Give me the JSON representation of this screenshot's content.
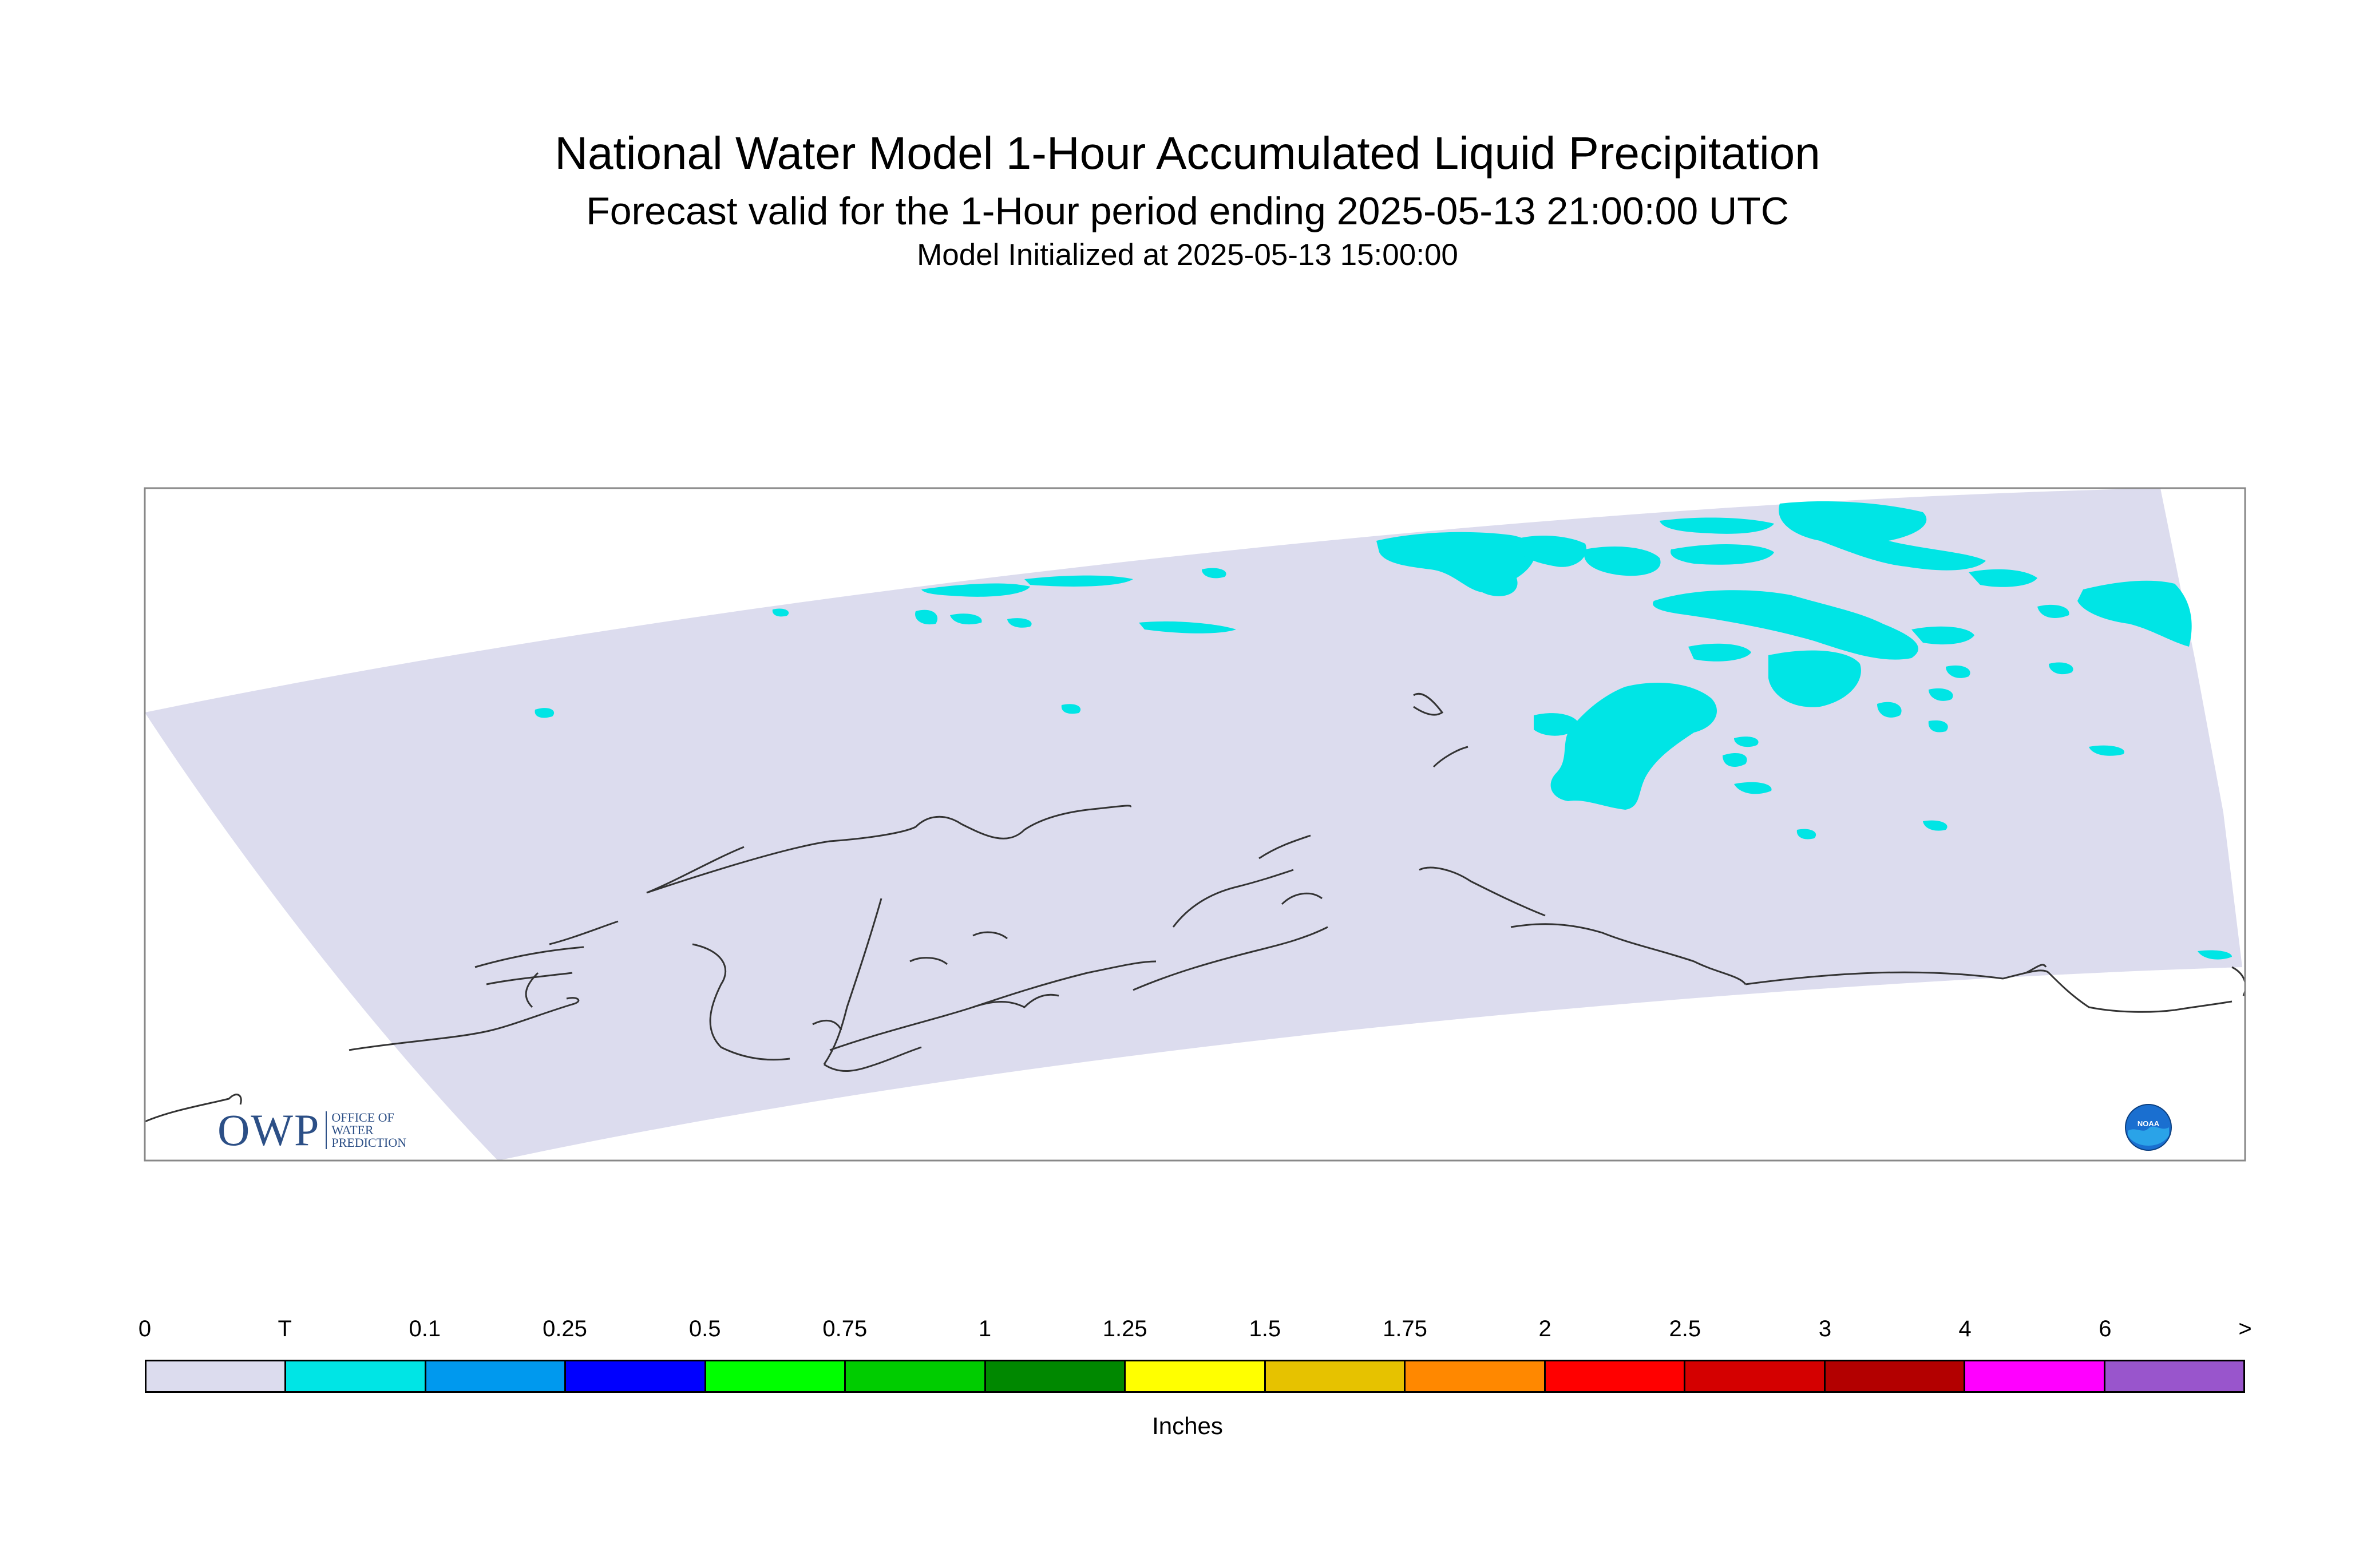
{
  "header": {
    "title": "National Water Model 1-Hour Accumulated Liquid Precipitation",
    "subtitle": "Forecast valid for the 1-Hour period ending 2025-05-13 21:00:00 UTC",
    "init": "Model Initialized at 2025-05-13 15:00:00"
  },
  "map": {
    "domain_color": "#dcdcee",
    "coast_color": "#333333",
    "precip_color": "#00e5e5"
  },
  "legend": {
    "labels": [
      "0",
      "T",
      "0.1",
      "0.25",
      "0.5",
      "0.75",
      "1",
      "1.25",
      "1.5",
      "1.75",
      "2",
      "2.5",
      "3",
      "4",
      "6",
      ">"
    ],
    "colors": [
      "#dcdcee",
      "#00e5e5",
      "#0099ee",
      "#0000ff",
      "#00ff00",
      "#00cc00",
      "#008800",
      "#ffff00",
      "#e6c200",
      "#ff8800",
      "#ff0000",
      "#d40000",
      "#b30000",
      "#ff00ff",
      "#9955cc"
    ],
    "units": "Inches"
  },
  "logos": {
    "owp_mark": "OWP",
    "owp_text": [
      "Office of",
      "Water",
      "Prediction"
    ],
    "noaa_text": "NOAA",
    "owp_icon": "owp-logo",
    "noaa_icon": "noaa-logo"
  }
}
